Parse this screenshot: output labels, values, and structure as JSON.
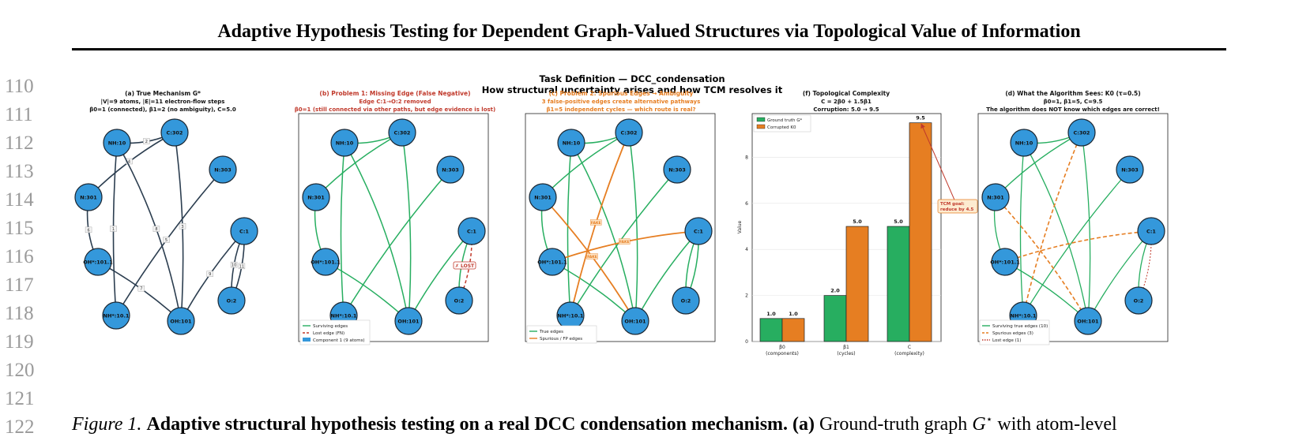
{
  "paper": {
    "running_title": "Adaptive Hypothesis Testing for Dependent Graph-Valued Structures via Topological Value of Information",
    "line_numbers": [
      "110",
      "111",
      "112",
      "113",
      "114",
      "115",
      "116",
      "117",
      "118",
      "119",
      "120",
      "121",
      "122"
    ]
  },
  "figure": {
    "suptitle_1": "Task Definition  —  DCC_condensation",
    "suptitle_2": "How structural uncertainty arises and how TCM resolves it",
    "nodes": [
      "NH:10",
      "C:302",
      "N:303",
      "N:301",
      "C:1",
      "OH*:101.1",
      "O:2",
      "NH*:10.1",
      "OH:101"
    ],
    "colors": {
      "node": "#3498db",
      "true_edge": "#2c3e50",
      "green": "#27ae60",
      "orange": "#e67e22",
      "red": "#c0392b",
      "panel_c_title": "#e67e22"
    },
    "panel_a": {
      "title_1": "(a)  True Mechanism G*",
      "title_2": "|V|=9 atoms, |E|=11 electron-flow steps",
      "title_3": "β0=1 (connected), β1=2 (no ambiguity), C=5.0",
      "edge_labels": [
        "1",
        "2",
        "3",
        "4",
        "5",
        "6",
        "7",
        "8",
        "9",
        "10",
        "11"
      ]
    },
    "panel_b": {
      "title_1": "(b)  Problem 1: Missing Edge (False Negative)",
      "title_2": "Edge C:1→O:2 removed",
      "title_3": "β0=1 (still connected via other paths, but edge evidence is lost)",
      "lost_label": "✗ LOST",
      "legend": [
        "Surviving edges",
        "Lost edge (FN)",
        "Component 1 (9 atoms)"
      ]
    },
    "panel_c": {
      "title_1": "(c)  Problem 2: Spurious Edges → Ambiguity",
      "title_2": "3 false-positive edges create alternative pathways",
      "title_3": "β1=5 independent cycles — which route is real?",
      "fake_label": "FAKE",
      "legend": [
        "True edges",
        "Spurious / FP edges"
      ]
    },
    "panel_d": {
      "title_1": "(d)  What the Algorithm Sees: K0 (τ=0.5)",
      "title_2": "β0=1, β1=5, C=9.5",
      "title_3": "The algorithm does NOT know which edges are correct!",
      "legend": [
        "Surviving true edges (10)",
        "Spurious edges (3)",
        "Lost edge (1)"
      ]
    },
    "panel_f": {
      "title_1": "(f)  Topological Complexity",
      "title_2": "C = 2β0 + 1.5β1",
      "title_3": "Corruption: 5.0 → 9.5",
      "annotation": "TCM goal: reduce by 4.5"
    }
  },
  "chart_data": {
    "type": "bar",
    "title": "(f)  Topological Complexity",
    "xlabel": "",
    "ylabel": "Value",
    "categories": [
      "β0\n(components)",
      "β1\n(cycles)",
      "C\n(complexity)"
    ],
    "tick_labels": [
      {
        "main": "β0",
        "sub": "(components)"
      },
      {
        "main": "β1",
        "sub": "(cycles)"
      },
      {
        "main": "C",
        "sub": "(complexity)"
      }
    ],
    "series": [
      {
        "name": "Ground truth G*",
        "values": [
          1.0,
          2.0,
          5.0
        ],
        "color": "#27ae60"
      },
      {
        "name": "Corrupted K0",
        "values": [
          1.0,
          5.0,
          9.5
        ],
        "color": "#e67e22"
      }
    ],
    "ylim": [
      0,
      9.9
    ],
    "yticks": [
      0,
      2,
      4,
      6,
      8
    ],
    "grid": true,
    "legend": "top-left"
  },
  "caption": {
    "label": "Figure 1.",
    "title": "Adaptive structural hypothesis testing on a real DCC condensation mechanism.",
    "part_a": "(a)",
    "text_a1": "Ground-truth graph",
    "G": "G",
    "star": "⋆",
    "text_a2": "with atom-level"
  }
}
